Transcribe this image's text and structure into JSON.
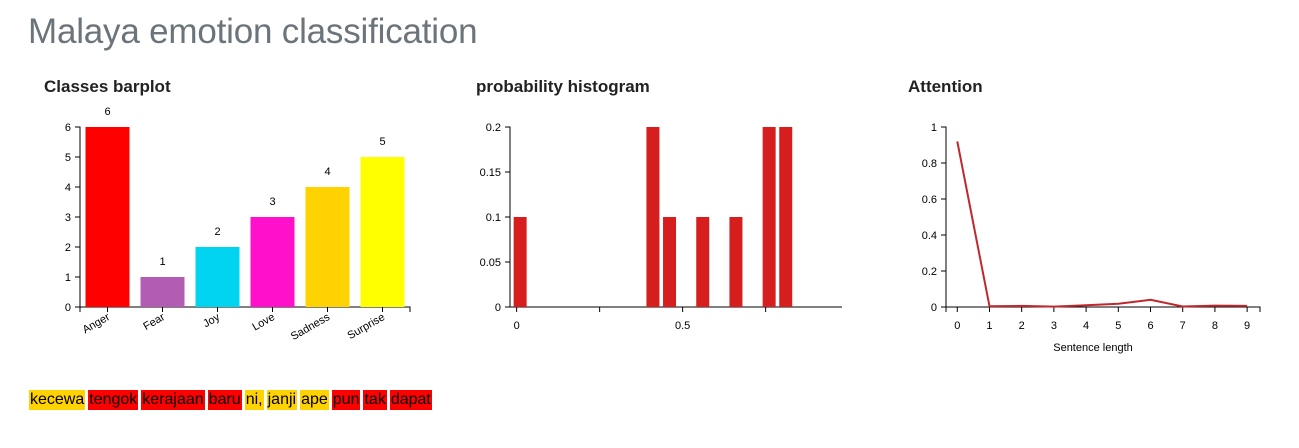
{
  "page": {
    "title": "Malaya emotion classification"
  },
  "charts": {
    "barplot_title": "Classes barplot",
    "histogram_title": "probability histogram",
    "attention_title": "Attention"
  },
  "chart_data": [
    {
      "type": "bar",
      "title": "Classes barplot",
      "categories": [
        "Anger",
        "Fear",
        "Joy",
        "Love",
        "Sadness",
        "Surprise"
      ],
      "values": [
        6,
        1,
        2,
        3,
        4,
        5
      ],
      "colors": [
        "#ff0000",
        "#b35cb3",
        "#00d4f0",
        "#ff11cc",
        "#ffd200",
        "#ffff00"
      ],
      "label_colors": [
        "#ff0000",
        "#b35cb3",
        "#00c8e8",
        "#ff11cc",
        "#ffd200",
        "#ffee00"
      ],
      "ylim": [
        0,
        6
      ],
      "yticks": [
        0,
        1,
        2,
        3,
        4,
        5,
        6
      ],
      "xlabel": "",
      "ylabel": "",
      "grid": false
    },
    {
      "type": "bar",
      "title": "probability histogram",
      "bars": [
        {
          "x": 0.0,
          "y": 0.1
        },
        {
          "x": 0.4,
          "y": 0.2
        },
        {
          "x": 0.45,
          "y": 0.1
        },
        {
          "x": 0.55,
          "y": 0.1
        },
        {
          "x": 0.65,
          "y": 0.1
        },
        {
          "x": 0.75,
          "y": 0.2
        },
        {
          "x": 0.8,
          "y": 0.2
        }
      ],
      "bar_color": "#d61e1e",
      "xlim": [
        -0.02,
        0.98
      ],
      "xticks": [
        0,
        0.5
      ],
      "xtick_labels": [
        "0",
        "0.5"
      ],
      "ylim": [
        0,
        0.2
      ],
      "yticks": [
        0,
        0.05,
        0.1,
        0.15,
        0.2
      ],
      "ytick_labels": [
        "0",
        "0.05",
        "0.1",
        "0.15",
        "0.2"
      ],
      "xlabel": "",
      "ylabel": "",
      "grid": false
    },
    {
      "type": "line",
      "title": "Attention",
      "x": [
        0,
        1,
        2,
        3,
        4,
        5,
        6,
        7,
        8,
        9
      ],
      "y": [
        0.92,
        0.004,
        0.006,
        0.002,
        0.01,
        0.018,
        0.04,
        0.003,
        0.008,
        0.006
      ],
      "line_color": "#c0282d",
      "xlim": [
        -0.35,
        9.4
      ],
      "xticks": [
        0,
        1,
        2,
        3,
        4,
        5,
        6,
        7,
        8,
        9
      ],
      "ylim": [
        0,
        1
      ],
      "yticks": [
        0,
        0.2,
        0.4,
        0.6,
        0.8,
        1
      ],
      "ytick_labels": [
        "0",
        "0.2",
        "0.4",
        "0.6",
        "0.8",
        "1"
      ],
      "xlabel": "Sentence length",
      "ylabel": "",
      "grid": false
    }
  ],
  "sentence": {
    "words": [
      {
        "text": "kecewa",
        "color": "#ffd200"
      },
      {
        "text": "tengok",
        "color": "#ff0000"
      },
      {
        "text": "kerajaan",
        "color": "#ff0000"
      },
      {
        "text": "baru",
        "color": "#ff0000"
      },
      {
        "text": "ni,",
        "color": "#ffd200"
      },
      {
        "text": "janji",
        "color": "#ffd200"
      },
      {
        "text": "ape",
        "color": "#ffd200"
      },
      {
        "text": "pun",
        "color": "#ff0000"
      },
      {
        "text": "tak",
        "color": "#ff0000"
      },
      {
        "text": "dapat",
        "color": "#ff0000"
      }
    ]
  }
}
